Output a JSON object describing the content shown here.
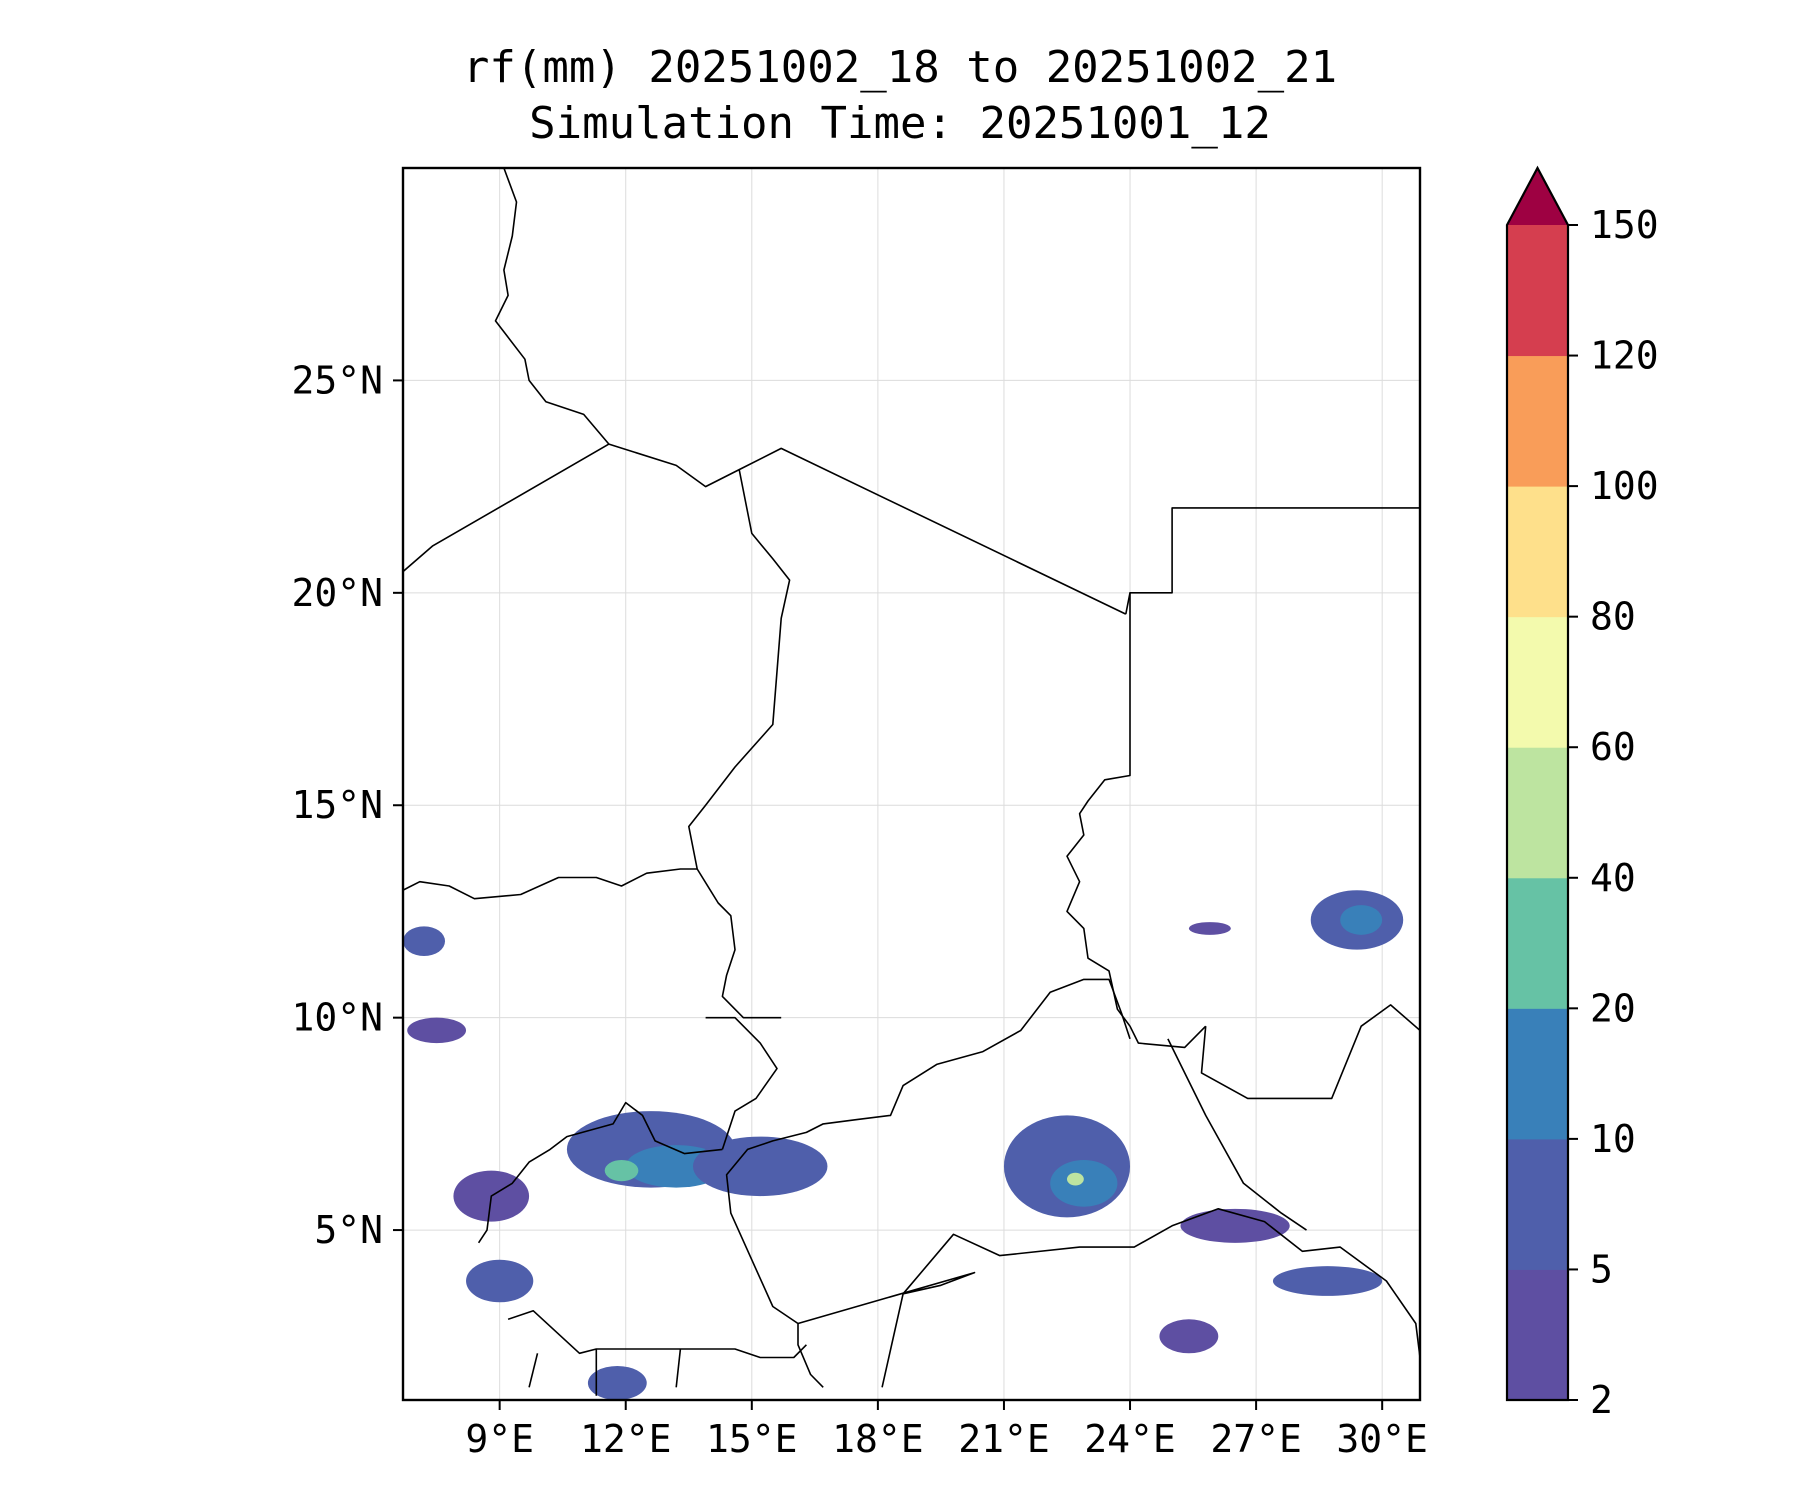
{
  "title": {
    "line1": "rf(mm) 20251002_18 to 20251002_21",
    "line2": "Simulation Time: 20251001_12"
  },
  "map": {
    "lon_range": [
      6.7,
      30.9
    ],
    "lat_range": [
      1.0,
      30.0
    ],
    "x_ticks": [
      {
        "value": 9,
        "label": "9°E"
      },
      {
        "value": 12,
        "label": "12°E"
      },
      {
        "value": 15,
        "label": "15°E"
      },
      {
        "value": 18,
        "label": "18°E"
      },
      {
        "value": 21,
        "label": "21°E"
      },
      {
        "value": 24,
        "label": "24°E"
      },
      {
        "value": 27,
        "label": "27°E"
      },
      {
        "value": 30,
        "label": "30°E"
      }
    ],
    "y_ticks": [
      {
        "value": 5,
        "label": "5°N"
      },
      {
        "value": 10,
        "label": "10°N"
      },
      {
        "value": 15,
        "label": "15°N"
      },
      {
        "value": 20,
        "label": "20°N"
      },
      {
        "value": 25,
        "label": "25°N"
      }
    ],
    "grid": true,
    "borders": [
      [
        [
          9.1,
          30
        ],
        [
          9.4,
          29.2
        ],
        [
          9.3,
          28.4
        ],
        [
          9.1,
          27.6
        ],
        [
          9.2,
          27
        ],
        [
          8.9,
          26.4
        ],
        [
          9.6,
          25.5
        ],
        [
          9.7,
          25
        ],
        [
          10.1,
          24.5
        ],
        [
          11,
          24.2
        ],
        [
          11.6,
          23.5
        ]
      ],
      [
        [
          6.7,
          20.5
        ],
        [
          7.4,
          21.1
        ],
        [
          11.6,
          23.5
        ],
        [
          13.2,
          23
        ],
        [
          13.9,
          22.5
        ],
        [
          14.7,
          22.9
        ],
        [
          15.7,
          23.4
        ],
        [
          23.9,
          19.5
        ]
      ],
      [
        [
          14.7,
          22.9
        ],
        [
          15,
          21.4
        ],
        [
          15.5,
          20.8
        ],
        [
          15.9,
          20.3
        ],
        [
          15.7,
          19.4
        ],
        [
          15.5,
          16.9
        ],
        [
          14.6,
          15.9
        ],
        [
          13.9,
          15
        ],
        [
          13.5,
          14.5
        ],
        [
          13.7,
          13.5
        ],
        [
          14.2,
          12.7
        ],
        [
          14.5,
          12.4
        ],
        [
          14.6,
          11.6
        ],
        [
          14.4,
          11
        ],
        [
          14.3,
          10.5
        ],
        [
          14.8,
          10
        ],
        [
          15.7,
          10
        ]
      ],
      [
        [
          23.9,
          19.5
        ],
        [
          24,
          20
        ],
        [
          25,
          20
        ],
        [
          25,
          22
        ],
        [
          30.9,
          22
        ]
      ],
      [
        [
          24,
          20
        ],
        [
          24,
          15.7
        ],
        [
          23.4,
          15.6
        ],
        [
          23,
          15.1
        ],
        [
          22.8,
          14.8
        ],
        [
          22.9,
          14.3
        ],
        [
          22.5,
          13.8
        ],
        [
          22.8,
          13.2
        ],
        [
          22.5,
          12.5
        ],
        [
          22.9,
          12.1
        ],
        [
          23,
          11.4
        ],
        [
          23.5,
          11.1
        ],
        [
          23.7,
          10.2
        ],
        [
          24,
          9.8
        ],
        [
          24.2,
          9.4
        ],
        [
          25.3,
          9.3
        ],
        [
          25.8,
          9.8
        ]
      ],
      [
        [
          24,
          9.5
        ],
        [
          23.8,
          10.1
        ],
        [
          23.5,
          10.9
        ],
        [
          22.9,
          10.9
        ],
        [
          22.1,
          10.6
        ],
        [
          21.4,
          9.7
        ],
        [
          20.5,
          9.2
        ],
        [
          19.4,
          8.9
        ],
        [
          18.6,
          8.4
        ],
        [
          18.3,
          7.7
        ],
        [
          17.5,
          7.6
        ],
        [
          16.7,
          7.5
        ],
        [
          16.3,
          7.3
        ],
        [
          15.5,
          7.1
        ],
        [
          14.9,
          6.9
        ],
        [
          14.4,
          6.3
        ],
        [
          14.5,
          5.4
        ],
        [
          15,
          4.3
        ],
        [
          15.5,
          3.2
        ],
        [
          16.1,
          2.8
        ],
        [
          16.1,
          2.3
        ],
        [
          16.4,
          1.6
        ],
        [
          16.7,
          1.3
        ]
      ],
      [
        [
          6.7,
          13
        ],
        [
          7.1,
          13.2
        ],
        [
          7.8,
          13.1
        ],
        [
          8.4,
          12.8
        ],
        [
          9.5,
          12.9
        ],
        [
          10.4,
          13.3
        ],
        [
          11.3,
          13.3
        ],
        [
          11.9,
          13.1
        ],
        [
          12.5,
          13.4
        ],
        [
          13.3,
          13.5
        ],
        [
          13.7,
          13.5
        ]
      ],
      [
        [
          13.9,
          10
        ],
        [
          14.6,
          10
        ],
        [
          15.2,
          9.4
        ],
        [
          15.6,
          8.8
        ],
        [
          15.1,
          8.1
        ],
        [
          14.6,
          7.8
        ],
        [
          14.3,
          6.9
        ]
      ],
      [
        [
          14.3,
          6.9
        ],
        [
          13.4,
          6.8
        ],
        [
          12.7,
          7.1
        ],
        [
          12.4,
          7.7
        ],
        [
          12,
          8
        ],
        [
          11.7,
          7.5
        ],
        [
          10.6,
          7.2
        ],
        [
          10.2,
          6.9
        ],
        [
          9.7,
          6.6
        ],
        [
          9.3,
          6.1
        ],
        [
          8.8,
          5.8
        ],
        [
          8.7,
          5
        ],
        [
          8.5,
          4.7
        ]
      ],
      [
        [
          9.2,
          2.9
        ],
        [
          9.8,
          3.1
        ],
        [
          10.9,
          2.1
        ],
        [
          11.3,
          2.2
        ],
        [
          12.8,
          2.2
        ],
        [
          13.3,
          2.2
        ],
        [
          14.6,
          2.2
        ],
        [
          15.2,
          2
        ],
        [
          16,
          2
        ],
        [
          16.3,
          2.3
        ]
      ],
      [
        [
          9.7,
          1.3
        ],
        [
          9.9,
          2.1
        ]
      ],
      [
        [
          11.3,
          1.1
        ],
        [
          11.3,
          2.2
        ]
      ],
      [
        [
          13.2,
          1.3
        ],
        [
          13.3,
          2.2
        ]
      ],
      [
        [
          18.1,
          1.3
        ],
        [
          18.6,
          3.5
        ],
        [
          19.8,
          4.9
        ],
        [
          20.9,
          4.4
        ],
        [
          22.8,
          4.6
        ],
        [
          24.1,
          4.6
        ],
        [
          25,
          5.1
        ],
        [
          26.1,
          5.5
        ],
        [
          27.2,
          5.2
        ],
        [
          28.1,
          4.5
        ],
        [
          29,
          4.6
        ],
        [
          30.1,
          3.8
        ],
        [
          30.8,
          2.8
        ],
        [
          30.9,
          2
        ]
      ],
      [
        [
          25.8,
          9.8
        ],
        [
          25.7,
          8.7
        ],
        [
          26.8,
          8.1
        ],
        [
          27.3,
          8.1
        ],
        [
          27.7,
          8.1
        ],
        [
          28.8,
          8.1
        ],
        [
          29.5,
          9.8
        ],
        [
          30.2,
          10.3
        ],
        [
          30.9,
          9.7
        ]
      ],
      [
        [
          24.9,
          9.5
        ],
        [
          25.8,
          7.7
        ],
        [
          26.7,
          6.1
        ],
        [
          27.6,
          5.4
        ],
        [
          28.2,
          5
        ]
      ],
      [
        [
          18.6,
          3.5
        ],
        [
          19.5,
          3.7
        ],
        [
          20.3,
          4
        ],
        [
          16.1,
          2.8
        ]
      ]
    ],
    "rain_cells": [
      {
        "lon": 7.2,
        "lat": 11.8,
        "rx": 0.5,
        "ry": 0.35,
        "level": 2
      },
      {
        "lon": 7.5,
        "lat": 9.7,
        "rx": 0.7,
        "ry": 0.3,
        "level": 1
      },
      {
        "lon": 12.6,
        "lat": 6.9,
        "rx": 2.0,
        "ry": 0.9,
        "level": 2
      },
      {
        "lon": 13.2,
        "lat": 6.5,
        "rx": 1.2,
        "ry": 0.5,
        "level": 3
      },
      {
        "lon": 11.9,
        "lat": 6.4,
        "rx": 0.4,
        "ry": 0.25,
        "level": 4
      },
      {
        "lon": 15.2,
        "lat": 6.5,
        "rx": 1.6,
        "ry": 0.7,
        "level": 2
      },
      {
        "lon": 8.8,
        "lat": 5.8,
        "rx": 0.9,
        "ry": 0.6,
        "level": 1
      },
      {
        "lon": 9.0,
        "lat": 3.8,
        "rx": 0.8,
        "ry": 0.5,
        "level": 2
      },
      {
        "lon": 22.5,
        "lat": 6.5,
        "rx": 1.5,
        "ry": 1.2,
        "level": 2
      },
      {
        "lon": 22.9,
        "lat": 6.1,
        "rx": 0.8,
        "ry": 0.55,
        "level": 3
      },
      {
        "lon": 22.7,
        "lat": 6.2,
        "rx": 0.2,
        "ry": 0.15,
        "level": 5
      },
      {
        "lon": 29.4,
        "lat": 12.3,
        "rx": 1.1,
        "ry": 0.7,
        "level": 2
      },
      {
        "lon": 29.5,
        "lat": 12.3,
        "rx": 0.5,
        "ry": 0.35,
        "level": 3
      },
      {
        "lon": 25.9,
        "lat": 12.1,
        "rx": 0.5,
        "ry": 0.15,
        "level": 1
      },
      {
        "lon": 26.5,
        "lat": 5.1,
        "rx": 1.3,
        "ry": 0.4,
        "level": 1
      },
      {
        "lon": 28.7,
        "lat": 3.8,
        "rx": 1.3,
        "ry": 0.35,
        "level": 2
      },
      {
        "lon": 25.4,
        "lat": 2.5,
        "rx": 0.7,
        "ry": 0.4,
        "level": 1
      },
      {
        "lon": 11.8,
        "lat": 1.4,
        "rx": 0.7,
        "ry": 0.4,
        "level": 2
      }
    ]
  },
  "colorbar": {
    "levels": [
      2,
      5,
      10,
      20,
      40,
      60,
      80,
      100,
      120,
      150
    ],
    "labels": [
      "2",
      "5",
      "10",
      "20",
      "40",
      "60",
      "80",
      "100",
      "120",
      "150"
    ],
    "colors": [
      "#5e4fa2",
      "#4f5fab",
      "#3980b9",
      "#66c2a5",
      "#bde4a0",
      "#f3faad",
      "#fee08b",
      "#f99d59",
      "#d53e4f"
    ],
    "extend_color": "#9e0142",
    "extend": "max"
  },
  "colors": {
    "border": "#000000",
    "grid": "#dcdcdc"
  }
}
